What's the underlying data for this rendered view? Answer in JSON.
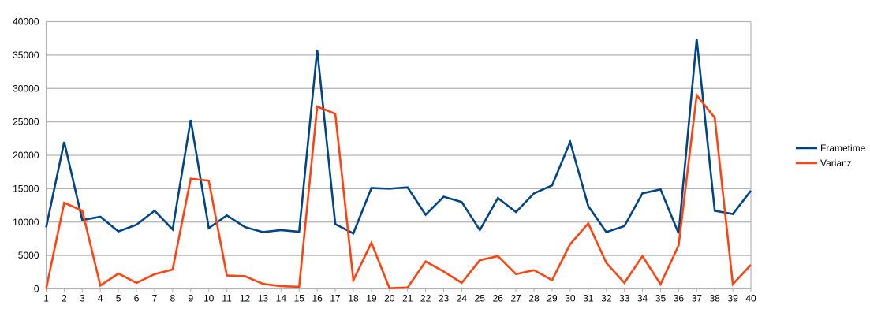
{
  "chart_data": {
    "type": "line",
    "title": "",
    "xlabel": "",
    "ylabel": "",
    "ylim": [
      0,
      40000
    ],
    "yticks": [
      0,
      5000,
      10000,
      15000,
      20000,
      25000,
      30000,
      35000,
      40000
    ],
    "grid": "horizontal",
    "legend": "right",
    "categories": [
      1,
      2,
      3,
      4,
      5,
      6,
      7,
      8,
      9,
      10,
      11,
      12,
      13,
      14,
      15,
      16,
      17,
      18,
      19,
      20,
      21,
      22,
      23,
      24,
      25,
      26,
      27,
      28,
      29,
      30,
      31,
      32,
      33,
      34,
      35,
      36,
      37,
      38,
      39,
      40
    ],
    "series": [
      {
        "name": "Frametime",
        "color": "#004586",
        "values": [
          9200,
          22000,
          10300,
          10800,
          8600,
          9600,
          11700,
          8900,
          25300,
          9100,
          11000,
          9250,
          8500,
          8800,
          8550,
          35800,
          9700,
          8300,
          15100,
          15000,
          15200,
          11100,
          13800,
          13000,
          8800,
          13600,
          11500,
          14300,
          15500,
          22000,
          12400,
          8500,
          9400,
          14300,
          14900,
          8300,
          37400,
          11700,
          11200,
          14700
        ]
      },
      {
        "name": "Varianz",
        "color": "#ff420e",
        "values": [
          0,
          12900,
          11700,
          500,
          2300,
          900,
          2200,
          2900,
          16500,
          16200,
          2000,
          1900,
          750,
          400,
          300,
          27300,
          26200,
          1300,
          6900,
          100,
          200,
          4100,
          2600,
          900,
          4300,
          4900,
          2200,
          2800,
          1300,
          6700,
          9800,
          3900,
          900,
          4900,
          700,
          6500,
          29000,
          25600,
          700,
          3600
        ]
      }
    ]
  }
}
